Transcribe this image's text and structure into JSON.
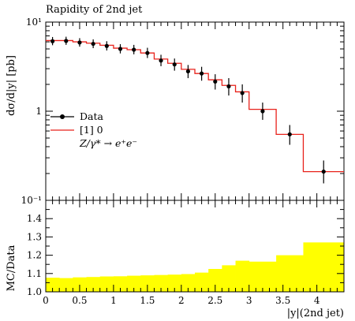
{
  "chart_data": [
    {
      "type": "line",
      "title": "Rapidity of 2nd jet",
      "ylabel": "dσ/d|y| [pb]",
      "yscale": "log",
      "xlim": [
        0,
        4.4
      ],
      "ylim": [
        0.1,
        10
      ],
      "y_tick_labels": [
        "10⁻¹",
        "1",
        "10¹"
      ],
      "legend_position": "middle-left",
      "bin_edges": [
        0,
        0.2,
        0.4,
        0.6,
        0.8,
        1.0,
        1.2,
        1.4,
        1.6,
        1.8,
        2.0,
        2.2,
        2.4,
        2.6,
        2.8,
        3.0,
        3.4,
        3.8,
        4.4
      ],
      "series": [
        {
          "name": "Data",
          "style": "points",
          "color": "#000000",
          "x": [
            0.1,
            0.3,
            0.5,
            0.7,
            0.9,
            1.1,
            1.3,
            1.5,
            1.7,
            1.9,
            2.1,
            2.3,
            2.5,
            2.7,
            2.9,
            3.2,
            3.6,
            4.1
          ],
          "values": [
            6.1,
            6.15,
            5.9,
            5.7,
            5.4,
            5.0,
            4.9,
            4.5,
            3.7,
            3.35,
            2.8,
            2.65,
            2.15,
            1.9,
            1.6,
            1.0,
            0.55,
            0.21
          ],
          "err_low": [
            5.5,
            5.55,
            5.3,
            5.1,
            4.8,
            4.45,
            4.35,
            3.95,
            3.2,
            2.85,
            2.35,
            2.2,
            1.75,
            1.5,
            1.25,
            0.8,
            0.42,
            0.155
          ],
          "err_high": [
            6.8,
            6.85,
            6.6,
            6.4,
            6.1,
            5.65,
            5.55,
            5.15,
            4.3,
            3.9,
            3.3,
            3.15,
            2.6,
            2.35,
            2.0,
            1.25,
            0.7,
            0.28
          ]
        },
        {
          "name": "[1] 0",
          "style": "step",
          "color": "#e8221b",
          "values": [
            6.2,
            6.2,
            6.0,
            5.8,
            5.5,
            5.1,
            4.9,
            4.5,
            3.85,
            3.45,
            2.95,
            2.65,
            2.25,
            1.95,
            1.65,
            1.05,
            0.55,
            0.21
          ]
        }
      ],
      "legend_extra": "Z/γ* → e⁺e⁻"
    },
    {
      "type": "area",
      "ylabel": "MC/Data",
      "xlabel": "|y|(2nd jet)",
      "xlim": [
        0,
        4.4
      ],
      "ylim": [
        1.0,
        1.5
      ],
      "x_ticks": [
        0,
        0.5,
        1,
        1.5,
        2,
        2.5,
        3,
        3.5,
        4
      ],
      "x_tick_labels": [
        "0",
        "0.5",
        "1",
        "1.5",
        "2",
        "2.5",
        "3",
        "3.5",
        "4"
      ],
      "y_ticks": [
        1.0,
        1.1,
        1.2,
        1.3,
        1.4
      ],
      "y_tick_labels": [
        "1.0",
        "1.1",
        "1.2",
        "1.3",
        "1.4"
      ],
      "band_color": "#ffff00",
      "bin_edges": [
        0,
        0.2,
        0.4,
        0.6,
        0.8,
        1.0,
        1.2,
        1.4,
        1.6,
        1.8,
        2.0,
        2.2,
        2.4,
        2.6,
        2.8,
        3.0,
        3.4,
        3.8,
        4.4
      ],
      "band_low": [
        1.0,
        1.0,
        1.0,
        1.0,
        1.0,
        1.0,
        1.0,
        1.0,
        1.0,
        1.0,
        1.0,
        1.0,
        1.0,
        1.0,
        1.0,
        1.0,
        1.0,
        1.0
      ],
      "band_high": [
        1.077,
        1.075,
        1.079,
        1.081,
        1.084,
        1.085,
        1.088,
        1.09,
        1.092,
        1.094,
        1.097,
        1.105,
        1.125,
        1.145,
        1.17,
        1.165,
        1.2,
        1.27
      ]
    }
  ]
}
